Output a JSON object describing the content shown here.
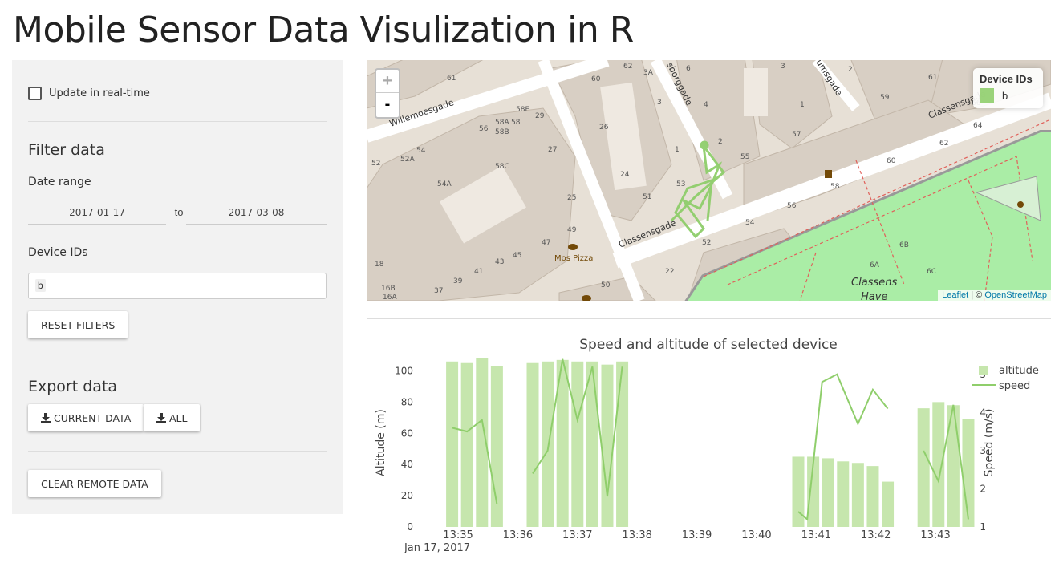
{
  "page": {
    "title": "Mobile Sensor Data Visulization in R"
  },
  "sidebar": {
    "realtime_label": "Update in real-time",
    "filter_heading": "Filter data",
    "date_range_label": "Date range",
    "date_start": "2017-01-17",
    "date_sep": "to",
    "date_end": "2017-03-08",
    "device_ids_label": "Device IDs",
    "device_selected": "b",
    "reset_label": "RESET FILTERS",
    "export_heading": "Export data",
    "export_current_label": "CURRENT DATA",
    "export_all_label": "ALL",
    "clear_label": "CLEAR REMOTE DATA"
  },
  "map": {
    "zoom_in": "+",
    "zoom_out": "-",
    "legend_title": "Device IDs",
    "legend_item": "b",
    "legend_color": "#8fce6b",
    "attr_leaflet": "Leaflet",
    "attr_sep": "| ©",
    "attr_osm": "OpenStreetMap",
    "street_labels": [
      "Willemoesgade",
      "Classensgade",
      "Classensgade",
      "sborggade",
      "umsgade"
    ],
    "poi_labels": [
      "Mos Pizza",
      "Classens",
      "Have"
    ]
  },
  "chart_data": {
    "type": "bar+line",
    "title": "Speed and altitude of selected device",
    "ylabel": "Altitude (m)",
    "y2label": "Speed (m/s)",
    "ylim": [
      0,
      110
    ],
    "y2lim": [
      1,
      5.5
    ],
    "yticks": [
      0,
      20,
      40,
      60,
      80,
      100
    ],
    "y2ticks": [
      1,
      2,
      3,
      4,
      5
    ],
    "xticks": [
      "13:35",
      "13:36",
      "13:37",
      "13:38",
      "13:39",
      "13:40",
      "13:41",
      "13:42",
      "13:43"
    ],
    "xtick_sub": "Jan 17, 2017",
    "legend": [
      "altitude",
      "speed"
    ],
    "bar_color": "#c6e6ad",
    "line_color": "#8fce6b",
    "altitude": [
      {
        "t": 34.9,
        "v": 106
      },
      {
        "t": 35.15,
        "v": 105
      },
      {
        "t": 35.4,
        "v": 108
      },
      {
        "t": 35.65,
        "v": 103
      },
      {
        "t": 36.25,
        "v": 105
      },
      {
        "t": 36.5,
        "v": 106
      },
      {
        "t": 36.75,
        "v": 107
      },
      {
        "t": 37.0,
        "v": 106
      },
      {
        "t": 37.25,
        "v": 106
      },
      {
        "t": 37.5,
        "v": 104
      },
      {
        "t": 37.75,
        "v": 106
      },
      {
        "t": 40.7,
        "v": 45
      },
      {
        "t": 40.95,
        "v": 45
      },
      {
        "t": 41.2,
        "v": 44
      },
      {
        "t": 41.45,
        "v": 42
      },
      {
        "t": 41.7,
        "v": 41
      },
      {
        "t": 41.95,
        "v": 39
      },
      {
        "t": 42.2,
        "v": 29
      },
      {
        "t": 42.8,
        "v": 76
      },
      {
        "t": 43.05,
        "v": 80
      },
      {
        "t": 43.3,
        "v": 78
      },
      {
        "t": 43.55,
        "v": 69
      }
    ],
    "speed_segments": [
      [
        {
          "t": 34.9,
          "v": 3.6
        },
        {
          "t": 35.15,
          "v": 3.5
        },
        {
          "t": 35.4,
          "v": 3.8
        },
        {
          "t": 35.65,
          "v": 1.6
        }
      ],
      [
        {
          "t": 36.25,
          "v": 2.4
        },
        {
          "t": 36.5,
          "v": 3.0
        },
        {
          "t": 36.75,
          "v": 5.4
        },
        {
          "t": 37.0,
          "v": 3.8
        },
        {
          "t": 37.25,
          "v": 5.2
        },
        {
          "t": 37.5,
          "v": 1.8
        },
        {
          "t": 37.75,
          "v": 5.2
        }
      ],
      [
        {
          "t": 40.7,
          "v": 1.4
        },
        {
          "t": 40.85,
          "v": 1.2
        },
        {
          "t": 41.1,
          "v": 4.8
        },
        {
          "t": 41.35,
          "v": 5.0
        },
        {
          "t": 41.7,
          "v": 3.7
        },
        {
          "t": 41.95,
          "v": 4.6
        },
        {
          "t": 42.2,
          "v": 4.1
        }
      ],
      [
        {
          "t": 42.8,
          "v": 3.0
        },
        {
          "t": 43.05,
          "v": 2.2
        },
        {
          "t": 43.3,
          "v": 4.2
        },
        {
          "t": 43.55,
          "v": 1.2
        }
      ]
    ]
  }
}
